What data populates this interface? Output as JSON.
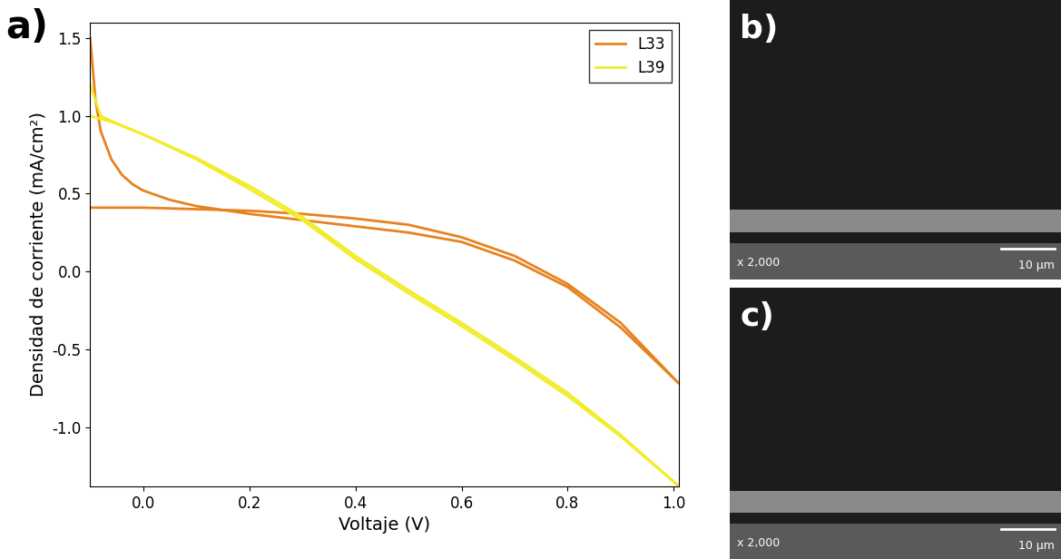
{
  "panel_label": "a)",
  "chart_data": {
    "type": "line",
    "xlabel": "Voltaje (V)",
    "ylabel": "Densidad de corriente (mA/cm²)",
    "xlim": [
      -0.1,
      1.01
    ],
    "ylim": [
      -1.38,
      1.6
    ],
    "xticks": [
      {
        "value": 0.0,
        "label": "0.0"
      },
      0.2,
      0.4,
      0.6,
      0.8,
      {
        "value": 1.0,
        "label": "1.0"
      }
    ],
    "yticks": [
      {
        "value": -1.0,
        "label": "-1.0"
      },
      -0.5,
      {
        "value": 0.0,
        "label": "0.0"
      },
      0.5,
      {
        "value": 1.0,
        "label": "1.0"
      },
      1.5
    ],
    "legend": "upper right",
    "series": [
      {
        "name": "L33",
        "color": "#e8821e",
        "x": [
          -0.1,
          -0.09,
          -0.08,
          -0.06,
          -0.04,
          -0.02,
          0.0,
          0.05,
          0.1,
          0.2,
          0.3,
          0.4,
          0.5,
          0.6,
          0.7,
          0.8,
          0.9,
          1.01,
          0.9,
          0.8,
          0.7,
          0.6,
          0.5,
          0.4,
          0.3,
          0.2,
          0.1,
          0.0,
          -0.1
        ],
        "values": [
          1.5,
          1.1,
          0.9,
          0.72,
          0.62,
          0.56,
          0.52,
          0.46,
          0.42,
          0.37,
          0.33,
          0.29,
          0.25,
          0.19,
          0.07,
          -0.1,
          -0.36,
          -0.72,
          -0.33,
          -0.08,
          0.1,
          0.22,
          0.3,
          0.34,
          0.37,
          0.39,
          0.4,
          0.41,
          0.41
        ]
      },
      {
        "name": "L39",
        "color": "#f2ec2e",
        "x": [
          -0.1,
          -0.08,
          -0.05,
          0.0,
          0.1,
          0.2,
          0.3,
          0.4,
          0.5,
          0.6,
          0.7,
          0.8,
          0.9,
          1.01,
          0.9,
          0.8,
          0.7,
          0.6,
          0.5,
          0.4,
          0.3,
          0.2,
          0.1,
          0.0,
          -0.05,
          -0.1
        ],
        "values": [
          1.2,
          1.0,
          0.95,
          0.88,
          0.73,
          0.55,
          0.35,
          0.1,
          -0.12,
          -0.33,
          -0.55,
          -0.78,
          -1.05,
          -1.38,
          -1.06,
          -0.8,
          -0.57,
          -0.35,
          -0.14,
          0.08,
          0.33,
          0.53,
          0.72,
          0.88,
          0.95,
          1.0
        ]
      }
    ]
  },
  "images": [
    {
      "label": "b)",
      "magnification": "x 2,000",
      "scale_bar": "10 µm"
    },
    {
      "label": "c)",
      "magnification": "x 2,000",
      "scale_bar": "10 µm"
    }
  ]
}
